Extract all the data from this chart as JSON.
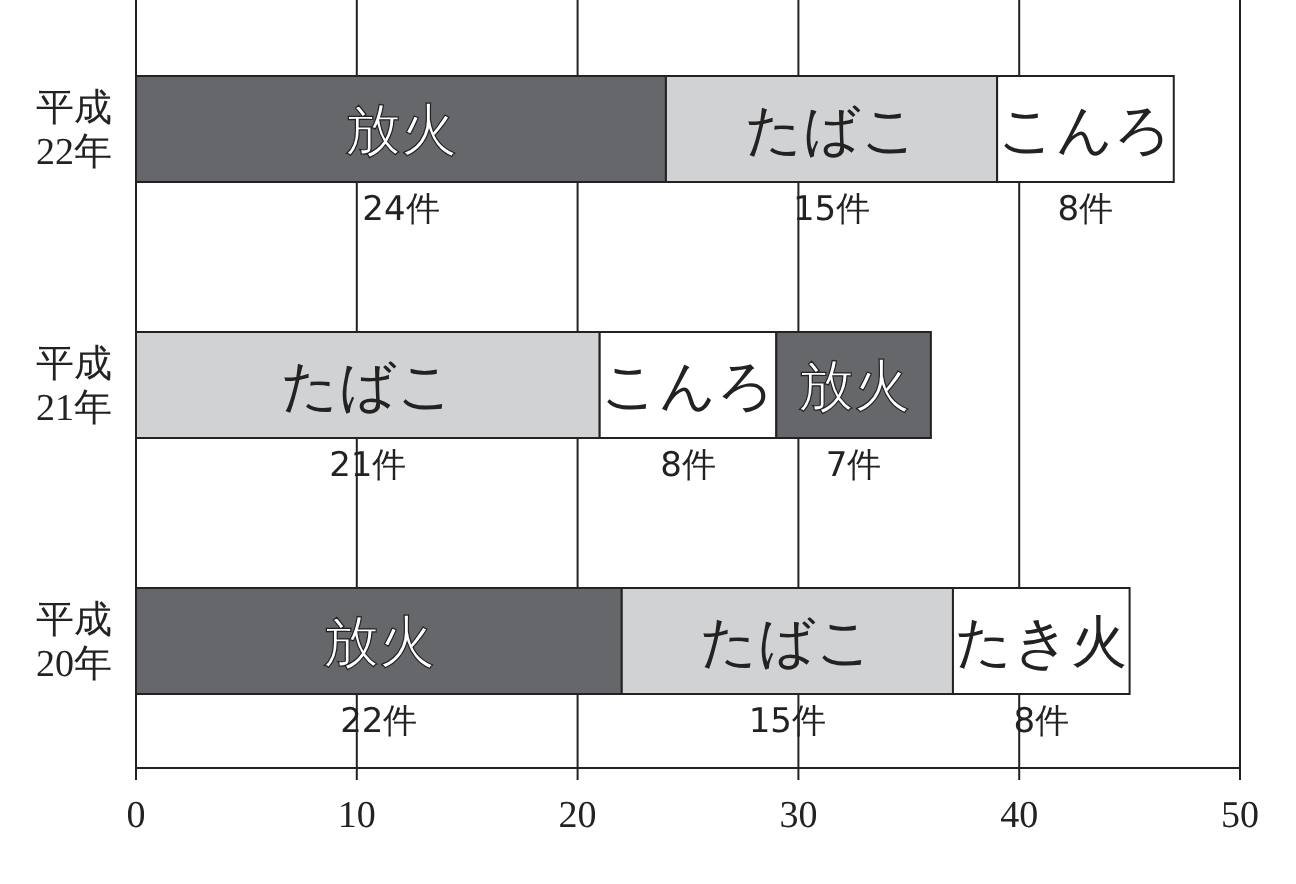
{
  "chart_data": {
    "type": "bar",
    "orientation": "horizontal",
    "stacked": true,
    "categories": [
      "平成22年",
      "平成21年",
      "平成20年"
    ],
    "series": [
      {
        "colors": [
          "#66676b",
          "#d1d2d4",
          "#66676b"
        ],
        "values": [
          24,
          21,
          22
        ],
        "value_labels": [
          "24件",
          "21件",
          "22件"
        ]
      },
      {
        "colors": [
          "#d1d2d4",
          "#ffffff",
          "#d1d2d4"
        ],
        "values": [
          15,
          8,
          15
        ],
        "value_labels": [
          "15件",
          "8件",
          "15件"
        ]
      },
      {
        "colors": [
          "#ffffff",
          "#66676b",
          "#ffffff"
        ],
        "values": [
          8,
          7,
          8
        ],
        "value_labels": [
          "8件",
          "7件",
          "8件"
        ]
      }
    ],
    "annotations": [
      "放火",
      "たばこ",
      "こんろ",
      "たばこ",
      "こんろ",
      "放火",
      "放火",
      "たばこ",
      "たき火"
    ],
    "xlim": [
      0,
      50
    ],
    "xticks": [
      0,
      10,
      20,
      30,
      40,
      50
    ],
    "grid": "x",
    "legend": false
  }
}
